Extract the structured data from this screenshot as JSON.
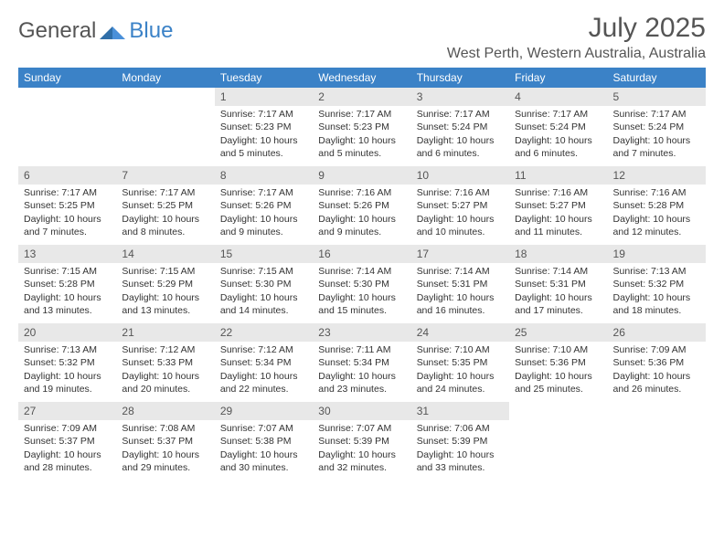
{
  "logo": {
    "general": "General",
    "blue": "Blue"
  },
  "title": "July 2025",
  "location": "West Perth, Western Australia, Australia",
  "colors": {
    "header_bg": "#3b82c7",
    "header_text": "#ffffff",
    "daynum_bg": "#e8e8e8",
    "text": "#333333",
    "title_text": "#555555"
  },
  "day_headers": [
    "Sunday",
    "Monday",
    "Tuesday",
    "Wednesday",
    "Thursday",
    "Friday",
    "Saturday"
  ],
  "weeks": [
    [
      {
        "empty": true
      },
      {
        "empty": true
      },
      {
        "n": "1",
        "sr": "7:17 AM",
        "ss": "5:23 PM",
        "dl": "10 hours and 5 minutes."
      },
      {
        "n": "2",
        "sr": "7:17 AM",
        "ss": "5:23 PM",
        "dl": "10 hours and 5 minutes."
      },
      {
        "n": "3",
        "sr": "7:17 AM",
        "ss": "5:24 PM",
        "dl": "10 hours and 6 minutes."
      },
      {
        "n": "4",
        "sr": "7:17 AM",
        "ss": "5:24 PM",
        "dl": "10 hours and 6 minutes."
      },
      {
        "n": "5",
        "sr": "7:17 AM",
        "ss": "5:24 PM",
        "dl": "10 hours and 7 minutes."
      }
    ],
    [
      {
        "n": "6",
        "sr": "7:17 AM",
        "ss": "5:25 PM",
        "dl": "10 hours and 7 minutes."
      },
      {
        "n": "7",
        "sr": "7:17 AM",
        "ss": "5:25 PM",
        "dl": "10 hours and 8 minutes."
      },
      {
        "n": "8",
        "sr": "7:17 AM",
        "ss": "5:26 PM",
        "dl": "10 hours and 9 minutes."
      },
      {
        "n": "9",
        "sr": "7:16 AM",
        "ss": "5:26 PM",
        "dl": "10 hours and 9 minutes."
      },
      {
        "n": "10",
        "sr": "7:16 AM",
        "ss": "5:27 PM",
        "dl": "10 hours and 10 minutes."
      },
      {
        "n": "11",
        "sr": "7:16 AM",
        "ss": "5:27 PM",
        "dl": "10 hours and 11 minutes."
      },
      {
        "n": "12",
        "sr": "7:16 AM",
        "ss": "5:28 PM",
        "dl": "10 hours and 12 minutes."
      }
    ],
    [
      {
        "n": "13",
        "sr": "7:15 AM",
        "ss": "5:28 PM",
        "dl": "10 hours and 13 minutes."
      },
      {
        "n": "14",
        "sr": "7:15 AM",
        "ss": "5:29 PM",
        "dl": "10 hours and 13 minutes."
      },
      {
        "n": "15",
        "sr": "7:15 AM",
        "ss": "5:30 PM",
        "dl": "10 hours and 14 minutes."
      },
      {
        "n": "16",
        "sr": "7:14 AM",
        "ss": "5:30 PM",
        "dl": "10 hours and 15 minutes."
      },
      {
        "n": "17",
        "sr": "7:14 AM",
        "ss": "5:31 PM",
        "dl": "10 hours and 16 minutes."
      },
      {
        "n": "18",
        "sr": "7:14 AM",
        "ss": "5:31 PM",
        "dl": "10 hours and 17 minutes."
      },
      {
        "n": "19",
        "sr": "7:13 AM",
        "ss": "5:32 PM",
        "dl": "10 hours and 18 minutes."
      }
    ],
    [
      {
        "n": "20",
        "sr": "7:13 AM",
        "ss": "5:32 PM",
        "dl": "10 hours and 19 minutes."
      },
      {
        "n": "21",
        "sr": "7:12 AM",
        "ss": "5:33 PM",
        "dl": "10 hours and 20 minutes."
      },
      {
        "n": "22",
        "sr": "7:12 AM",
        "ss": "5:34 PM",
        "dl": "10 hours and 22 minutes."
      },
      {
        "n": "23",
        "sr": "7:11 AM",
        "ss": "5:34 PM",
        "dl": "10 hours and 23 minutes."
      },
      {
        "n": "24",
        "sr": "7:10 AM",
        "ss": "5:35 PM",
        "dl": "10 hours and 24 minutes."
      },
      {
        "n": "25",
        "sr": "7:10 AM",
        "ss": "5:36 PM",
        "dl": "10 hours and 25 minutes."
      },
      {
        "n": "26",
        "sr": "7:09 AM",
        "ss": "5:36 PM",
        "dl": "10 hours and 26 minutes."
      }
    ],
    [
      {
        "n": "27",
        "sr": "7:09 AM",
        "ss": "5:37 PM",
        "dl": "10 hours and 28 minutes."
      },
      {
        "n": "28",
        "sr": "7:08 AM",
        "ss": "5:37 PM",
        "dl": "10 hours and 29 minutes."
      },
      {
        "n": "29",
        "sr": "7:07 AM",
        "ss": "5:38 PM",
        "dl": "10 hours and 30 minutes."
      },
      {
        "n": "30",
        "sr": "7:07 AM",
        "ss": "5:39 PM",
        "dl": "10 hours and 32 minutes."
      },
      {
        "n": "31",
        "sr": "7:06 AM",
        "ss": "5:39 PM",
        "dl": "10 hours and 33 minutes."
      },
      {
        "empty": true
      },
      {
        "empty": true
      }
    ]
  ],
  "labels": {
    "sunrise": "Sunrise: ",
    "sunset": "Sunset: ",
    "daylight": "Daylight: "
  }
}
